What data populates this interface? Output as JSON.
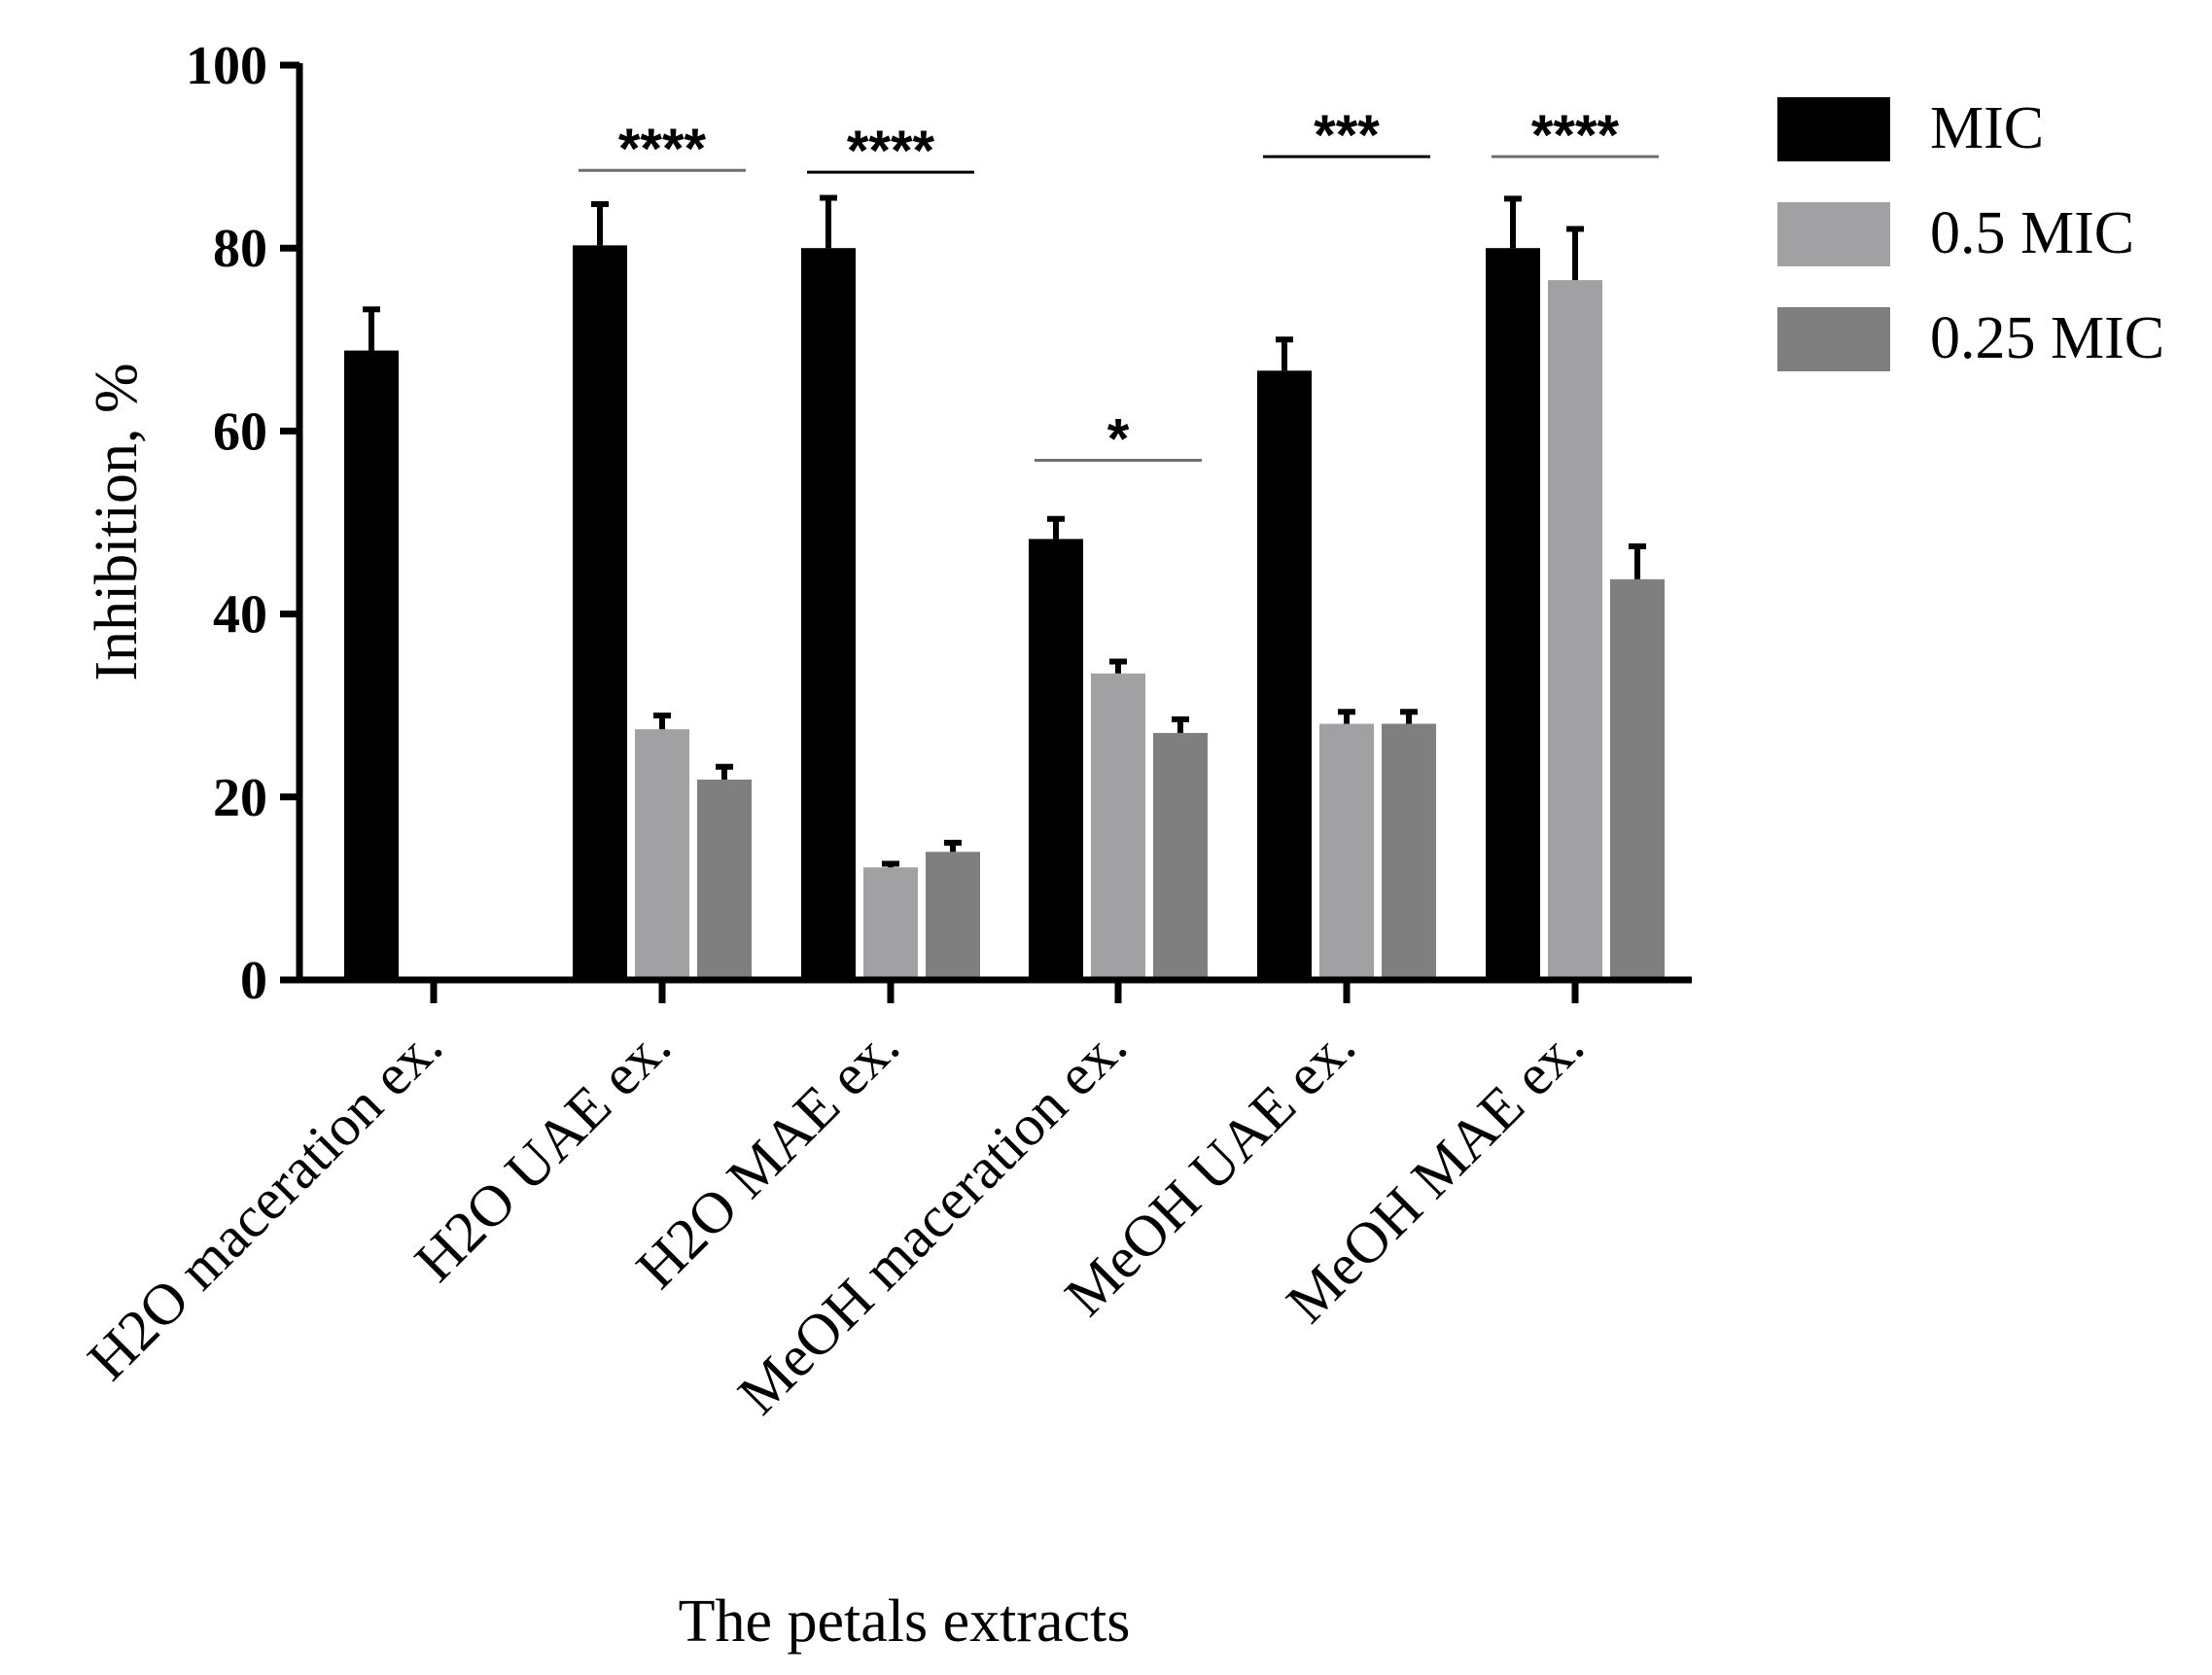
{
  "chart_data": {
    "type": "bar",
    "title": "",
    "xlabel": "The petals extracts",
    "ylabel": "Inhibition, %",
    "ylim": [
      0,
      100
    ],
    "yticks": [
      "0",
      "20",
      "40",
      "60",
      "80",
      "100"
    ],
    "categories": [
      "H2O maceration ex.",
      "H2O UAE ex.",
      "H2O MAE ex.",
      "MeOH maceration ex.",
      "MeOH UAE ex.",
      "MeOH MAE ex."
    ],
    "series": [
      {
        "name": "MIC",
        "color": "#000000",
        "values": [
          68.8,
          80.3,
          80.0,
          48.2,
          66.6,
          80.0
        ],
        "errors": [
          4.5,
          4.5,
          5.5,
          2.2,
          3.4,
          5.4
        ]
      },
      {
        "name": "0.5 MIC",
        "color": "#a1a1a4",
        "values": [
          0,
          27.4,
          12.3,
          33.5,
          28.0,
          76.5
        ],
        "errors": [
          0,
          1.5,
          0.4,
          1.3,
          1.3,
          5.6
        ]
      },
      {
        "name": "0.25 MIC",
        "color": "#7f7f7f",
        "values": [
          0,
          21.9,
          14.0,
          27.0,
          28.0,
          43.8
        ],
        "errors": [
          0,
          1.4,
          1.0,
          1.5,
          1.3,
          3.6
        ]
      }
    ],
    "significance": [
      {
        "category": "H2O UAE ex.",
        "label": "****",
        "level": 88.5
      },
      {
        "category": "H2O MAE ex.",
        "label": "****",
        "level": 88.3
      },
      {
        "category": "MeOH maceration ex.",
        "label": "*",
        "level": 56.8
      },
      {
        "category": "MeOH UAE ex.",
        "label": "***",
        "level": 90.0
      },
      {
        "category": "MeOH MAE ex.",
        "label": "****",
        "level": 90.0
      }
    ],
    "legend_position": "top-right"
  }
}
